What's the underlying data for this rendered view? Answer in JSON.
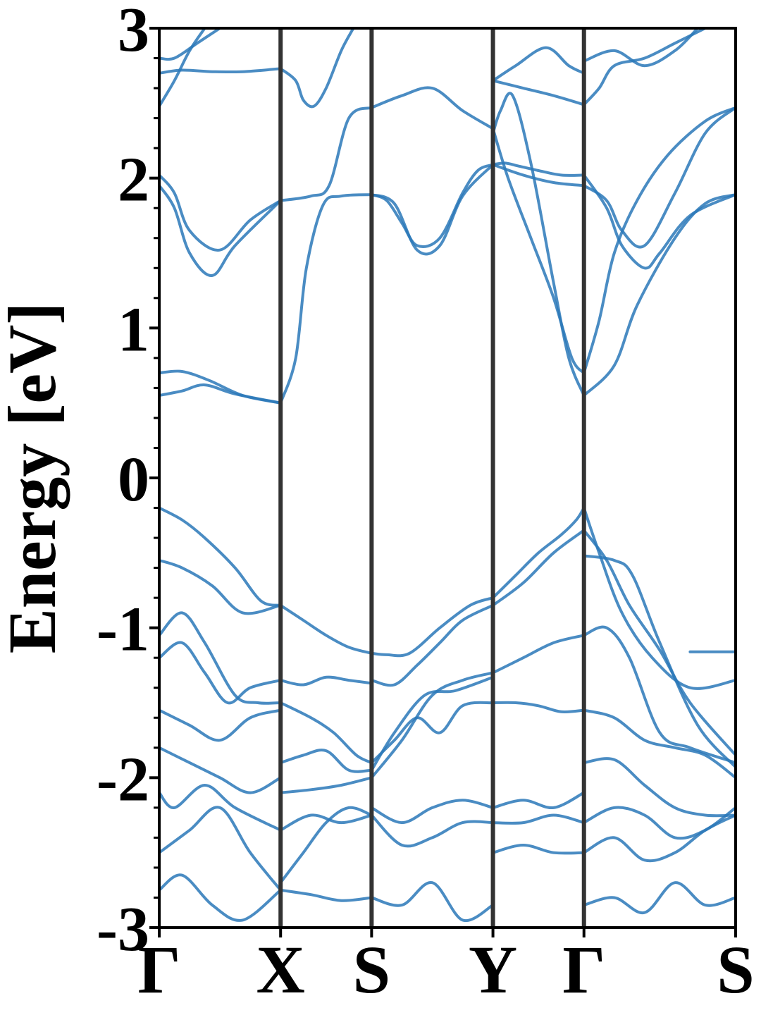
{
  "chart_data": {
    "type": "line",
    "title": "",
    "xlabel": "",
    "ylabel": "Energy [eV]",
    "ylim": [
      -3,
      3
    ],
    "y_ticks": [
      "3",
      "2",
      "1",
      "0",
      "-1",
      "-2",
      "-3"
    ],
    "y_tick_values": [
      3,
      2,
      1,
      0,
      -1,
      -2,
      -3
    ],
    "x_ticks": [
      "Γ",
      "X",
      "S",
      "Y",
      "Γ",
      "S"
    ],
    "x_tick_positions": [
      0,
      0.8,
      1.4,
      2.2,
      2.8,
      3.8
    ],
    "xlim": [
      0,
      3.8
    ],
    "grid": false,
    "minor_y_ticks": true,
    "high_symmetry_lines": true,
    "colors": {
      "band": "#2a78b8",
      "symmetry_line": "#333333",
      "axes": "#000000"
    },
    "series": [
      {
        "x": [
          0,
          0.15,
          0.33,
          0.55,
          0.8
        ],
        "y": [
          0.7,
          0.71,
          0.65,
          0.55,
          0.5
        ]
      },
      {
        "x": [
          0,
          0.15,
          0.3,
          0.5,
          0.8
        ],
        "y": [
          0.55,
          0.58,
          0.62,
          0.56,
          0.5
        ]
      },
      {
        "x": [
          0.8,
          0.9,
          0.97,
          1.08,
          1.2,
          1.4
        ],
        "y": [
          0.5,
          0.8,
          1.4,
          1.82,
          1.88,
          1.89
        ]
      },
      {
        "x": [
          1.4,
          1.5,
          1.6,
          1.7,
          1.85,
          2.0,
          2.1,
          2.2
        ],
        "y": [
          1.89,
          1.85,
          1.7,
          1.55,
          1.6,
          1.9,
          2.05,
          2.09
        ]
      },
      {
        "x": [
          1.4,
          1.55,
          1.7,
          1.85,
          2.0,
          2.2
        ],
        "y": [
          1.89,
          1.83,
          1.52,
          1.55,
          1.88,
          2.09
        ]
      },
      {
        "x": [
          0,
          0.1,
          0.2,
          0.35,
          0.5,
          0.8
        ],
        "y": [
          1.95,
          1.8,
          1.5,
          1.35,
          1.55,
          1.85
        ]
      },
      {
        "x": [
          0,
          0.1,
          0.2,
          0.4,
          0.6,
          0.8
        ],
        "y": [
          2.02,
          1.9,
          1.65,
          1.52,
          1.72,
          1.85
        ]
      },
      {
        "x": [
          0.8,
          1.0,
          1.12,
          1.25,
          1.4
        ],
        "y": [
          1.85,
          1.88,
          1.95,
          2.4,
          2.47
        ]
      },
      {
        "x": [
          1.4,
          1.6,
          1.8,
          2.0,
          2.2
        ],
        "y": [
          2.47,
          2.55,
          2.6,
          2.45,
          2.33
        ]
      },
      {
        "x": [
          2.2,
          2.28,
          2.37,
          2.5,
          2.65,
          2.8
        ],
        "y": [
          2.09,
          2.1,
          2.08,
          2.05,
          2.02,
          2.02
        ]
      },
      {
        "x": [
          2.2,
          2.4,
          2.6,
          2.8
        ],
        "y": [
          2.09,
          2.02,
          1.97,
          1.95
        ]
      },
      {
        "x": [
          2.2,
          2.3,
          2.45,
          2.6,
          2.72,
          2.8
        ],
        "y": [
          2.33,
          2.0,
          1.6,
          1.2,
          0.8,
          0.7
        ]
      },
      {
        "x": [
          2.2,
          2.25,
          2.33,
          2.45,
          2.6,
          2.7,
          2.8
        ],
        "y": [
          2.3,
          2.45,
          2.55,
          2.1,
          1.3,
          0.8,
          0.55
        ]
      },
      {
        "x": [
          2.8,
          3.0,
          3.15,
          3.4,
          3.6,
          3.8
        ],
        "y": [
          0.55,
          0.75,
          1.15,
          1.6,
          1.83,
          1.89
        ]
      },
      {
        "x": [
          2.8,
          2.9,
          3.0,
          3.15,
          3.35,
          3.6,
          3.8
        ],
        "y": [
          0.7,
          1.05,
          1.5,
          1.85,
          2.15,
          2.38,
          2.47
        ]
      },
      {
        "x": [
          2.8,
          2.95,
          3.05,
          3.2,
          3.3,
          3.5,
          3.8
        ],
        "y": [
          2.02,
          1.8,
          1.55,
          1.4,
          1.5,
          1.75,
          1.89
        ]
      },
      {
        "x": [
          2.8,
          2.95,
          3.05,
          3.2,
          3.4,
          3.6,
          3.8
        ],
        "y": [
          1.95,
          1.85,
          1.65,
          1.55,
          1.9,
          2.3,
          2.47
        ]
      },
      {
        "x": [
          0,
          0.15,
          0.35,
          0.55,
          0.8
        ],
        "y": [
          2.7,
          2.72,
          2.71,
          2.71,
          2.73
        ]
      },
      {
        "x": [
          0,
          0.1,
          0.25,
          0.4
        ],
        "y": [
          2.8,
          2.8,
          2.9,
          3.0
        ]
      },
      {
        "x": [
          0,
          0.1,
          0.2,
          0.3
        ],
        "y": [
          2.48,
          2.65,
          2.85,
          3.0
        ]
      },
      {
        "x": [
          0.8,
          0.9,
          0.95,
          1.02,
          1.1,
          1.2,
          1.28
        ],
        "y": [
          2.73,
          2.65,
          2.52,
          2.48,
          2.6,
          2.85,
          3.0
        ]
      },
      {
        "x": [
          2.2,
          2.4,
          2.6,
          2.8
        ],
        "y": [
          2.65,
          2.6,
          2.55,
          2.49
        ]
      },
      {
        "x": [
          2.2,
          2.35,
          2.55,
          2.7,
          2.8
        ],
        "y": [
          2.65,
          2.75,
          2.87,
          2.75,
          2.7
        ]
      },
      {
        "x": [
          2.8,
          2.9,
          3.0,
          3.2,
          3.4,
          3.6
        ],
        "y": [
          2.49,
          2.6,
          2.75,
          2.8,
          2.9,
          3.0
        ]
      },
      {
        "x": [
          2.8,
          3.0,
          3.2,
          3.4,
          3.55
        ],
        "y": [
          2.78,
          2.85,
          2.75,
          2.85,
          3.0
        ]
      },
      {
        "x": [
          0,
          0.15,
          0.3,
          0.5,
          0.67,
          0.8
        ],
        "y": [
          -0.2,
          -0.28,
          -0.4,
          -0.6,
          -0.82,
          -0.85
        ]
      },
      {
        "x": [
          0,
          0.15,
          0.35,
          0.55,
          0.8
        ],
        "y": [
          -0.55,
          -0.6,
          -0.72,
          -0.9,
          -0.85
        ]
      },
      {
        "x": [
          0.8,
          0.95,
          1.1,
          1.25,
          1.4
        ],
        "y": [
          -0.85,
          -0.95,
          -1.05,
          -1.13,
          -1.17
        ]
      },
      {
        "x": [
          1.4,
          1.5,
          1.65,
          1.85,
          2.05,
          2.2
        ],
        "y": [
          -1.17,
          -1.18,
          -1.17,
          -1.0,
          -0.85,
          -0.8
        ]
      },
      {
        "x": [
          1.4,
          1.55,
          1.7,
          1.85,
          2.0,
          2.2
        ],
        "y": [
          -1.35,
          -1.38,
          -1.25,
          -1.1,
          -0.95,
          -0.85
        ]
      },
      {
        "x": [
          2.2,
          2.35,
          2.5,
          2.65,
          2.75,
          2.8
        ],
        "y": [
          -0.8,
          -0.65,
          -0.5,
          -0.38,
          -0.28,
          -0.2
        ]
      },
      {
        "x": [
          2.2,
          2.4,
          2.6,
          2.8
        ],
        "y": [
          -0.85,
          -0.7,
          -0.5,
          -0.35
        ]
      },
      {
        "x": [
          2.8,
          2.9,
          3.05,
          3.25,
          3.5,
          3.8
        ],
        "y": [
          -0.2,
          -0.5,
          -0.9,
          -1.2,
          -1.4,
          -1.35
        ]
      },
      {
        "x": [
          2.8,
          2.95,
          3.1,
          3.3,
          3.5,
          3.8
        ],
        "y": [
          -0.35,
          -0.55,
          -0.85,
          -1.15,
          -1.5,
          -1.85
        ]
      },
      {
        "x": [
          2.8,
          3.0,
          3.12,
          3.3,
          3.55,
          3.8
        ],
        "y": [
          -0.52,
          -0.55,
          -0.65,
          -1.1,
          -1.65,
          -1.93
        ]
      },
      {
        "x": [
          3.5,
          3.6,
          3.7,
          3.8
        ],
        "y": [
          -1.16,
          -1.16,
          -1.16,
          -1.16
        ]
      },
      {
        "x": [
          0,
          0.15,
          0.3,
          0.5,
          0.65,
          0.8
        ],
        "y": [
          -1.05,
          -0.9,
          -1.1,
          -1.45,
          -1.5,
          -1.5
        ]
      },
      {
        "x": [
          0,
          0.15,
          0.3,
          0.45,
          0.6,
          0.8
        ],
        "y": [
          -1.2,
          -1.1,
          -1.3,
          -1.5,
          -1.4,
          -1.35
        ]
      },
      {
        "x": [
          0.8,
          0.95,
          1.1,
          1.25,
          1.4
        ],
        "y": [
          -1.35,
          -1.38,
          -1.33,
          -1.35,
          -1.37
        ]
      },
      {
        "x": [
          0.8,
          1.0,
          1.15,
          1.3,
          1.4
        ],
        "y": [
          -1.5,
          -1.6,
          -1.7,
          -1.85,
          -1.9
        ]
      },
      {
        "x": [
          0.8,
          0.95,
          1.1,
          1.25,
          1.4
        ],
        "y": [
          -1.9,
          -1.85,
          -1.82,
          -1.95,
          -1.95
        ]
      },
      {
        "x": [
          0.8,
          1.0,
          1.2,
          1.4
        ],
        "y": [
          -2.1,
          -2.08,
          -2.05,
          -2.0
        ]
      },
      {
        "x": [
          1.4,
          1.55,
          1.7,
          1.85,
          2.0,
          2.2
        ],
        "y": [
          -1.9,
          -1.75,
          -1.6,
          -1.7,
          -1.52,
          -1.5
        ]
      },
      {
        "x": [
          1.4,
          1.55,
          1.75,
          1.95,
          2.2
        ],
        "y": [
          -1.95,
          -1.7,
          -1.45,
          -1.42,
          -1.33
        ]
      },
      {
        "x": [
          1.4,
          1.6,
          1.8,
          2.0,
          2.2
        ],
        "y": [
          -2.0,
          -1.75,
          -1.45,
          -1.35,
          -1.3
        ]
      },
      {
        "x": [
          2.2,
          2.35,
          2.5,
          2.65,
          2.8
        ],
        "y": [
          -1.5,
          -1.5,
          -1.52,
          -1.56,
          -1.55
        ]
      },
      {
        "x": [
          2.2,
          2.4,
          2.6,
          2.8
        ],
        "y": [
          -1.3,
          -1.2,
          -1.1,
          -1.05
        ]
      },
      {
        "x": [
          2.8,
          2.95,
          3.1,
          3.3,
          3.5,
          3.8
        ],
        "y": [
          -1.05,
          -1.0,
          -1.2,
          -1.7,
          -1.8,
          -1.9
        ]
      },
      {
        "x": [
          2.8,
          3.0,
          3.2,
          3.4,
          3.6,
          3.8
        ],
        "y": [
          -1.55,
          -1.6,
          -1.75,
          -1.8,
          -1.85,
          -2.0
        ]
      },
      {
        "x": [
          0,
          0.2,
          0.4,
          0.6,
          0.8
        ],
        "y": [
          -1.55,
          -1.65,
          -1.75,
          -1.6,
          -1.55
        ]
      },
      {
        "x": [
          0,
          0.2,
          0.4,
          0.6,
          0.8
        ],
        "y": [
          -1.8,
          -1.9,
          -2.0,
          -2.1,
          -2.0
        ]
      },
      {
        "x": [
          0,
          0.1,
          0.3,
          0.5,
          0.8
        ],
        "y": [
          -2.1,
          -2.2,
          -2.05,
          -2.2,
          -2.35
        ]
      },
      {
        "x": [
          0,
          0.2,
          0.4,
          0.6,
          0.8
        ],
        "y": [
          -2.5,
          -2.35,
          -2.2,
          -2.5,
          -2.75
        ]
      },
      {
        "x": [
          0,
          0.15,
          0.35,
          0.55,
          0.8
        ],
        "y": [
          -2.75,
          -2.65,
          -2.85,
          -2.95,
          -2.75
        ]
      },
      {
        "x": [
          0.8,
          1.0,
          1.2,
          1.4
        ],
        "y": [
          -2.35,
          -2.25,
          -2.3,
          -2.25
        ]
      },
      {
        "x": [
          0.8,
          1.0,
          1.2,
          1.4
        ],
        "y": [
          -2.75,
          -2.78,
          -2.82,
          -2.8
        ]
      },
      {
        "x": [
          0.8,
          0.95,
          1.1,
          1.25,
          1.4
        ],
        "y": [
          -2.7,
          -2.5,
          -2.3,
          -2.2,
          -2.25
        ]
      },
      {
        "x": [
          1.4,
          1.6,
          1.8,
          2.0,
          2.2
        ],
        "y": [
          -2.2,
          -2.3,
          -2.2,
          -2.15,
          -2.2
        ]
      },
      {
        "x": [
          1.4,
          1.6,
          1.8,
          2.0,
          2.2
        ],
        "y": [
          -2.25,
          -2.45,
          -2.4,
          -2.3,
          -2.3
        ]
      },
      {
        "x": [
          1.4,
          1.6,
          1.8,
          2.0,
          2.2
        ],
        "y": [
          -2.8,
          -2.85,
          -2.7,
          -2.95,
          -2.85
        ]
      },
      {
        "x": [
          2.2,
          2.4,
          2.6,
          2.8
        ],
        "y": [
          -2.2,
          -2.15,
          -2.2,
          -2.1
        ]
      },
      {
        "x": [
          2.2,
          2.4,
          2.6,
          2.8
        ],
        "y": [
          -2.3,
          -2.3,
          -2.25,
          -2.3
        ]
      },
      {
        "x": [
          2.2,
          2.4,
          2.6,
          2.8
        ],
        "y": [
          -2.5,
          -2.45,
          -2.5,
          -2.5
        ]
      },
      {
        "x": [
          2.8,
          3.0,
          3.2,
          3.4,
          3.6,
          3.8
        ],
        "y": [
          -2.3,
          -2.2,
          -2.25,
          -2.4,
          -2.35,
          -2.2
        ]
      },
      {
        "x": [
          2.8,
          3.0,
          3.2,
          3.4,
          3.6,
          3.8
        ],
        "y": [
          -2.5,
          -2.4,
          -2.55,
          -2.5,
          -2.35,
          -2.25
        ]
      },
      {
        "x": [
          2.8,
          3.0,
          3.2,
          3.4,
          3.6,
          3.8
        ],
        "y": [
          -2.85,
          -2.8,
          -2.9,
          -2.7,
          -2.85,
          -2.8
        ]
      },
      {
        "x": [
          2.8,
          3.0,
          3.2,
          3.4,
          3.6,
          3.8
        ],
        "y": [
          -1.9,
          -1.88,
          -2.05,
          -2.2,
          -2.25,
          -2.25
        ]
      }
    ]
  }
}
